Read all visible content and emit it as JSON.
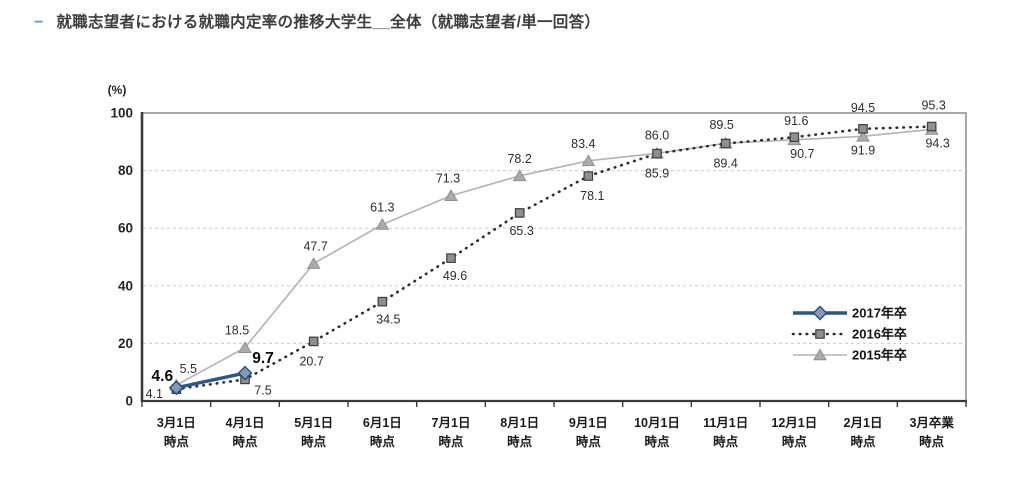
{
  "title": {
    "bullet": "−",
    "text": "就職志望者における就職内定率の推移大学生__全体（就職志望者/単一回答）"
  },
  "colors": {
    "bullet": "#4da6c9",
    "title_text": "#3d3d3d",
    "series_2017": "#2a5783",
    "series_2016": "#2e2e2e",
    "series_2015": "#b3b3b3",
    "grid": "#cacaca",
    "frame": "#848484",
    "axis": "#3a3a3a"
  },
  "chart_data": {
    "type": "line",
    "unit_label": "(%)",
    "ylim": [
      0,
      100
    ],
    "yticks": [
      0,
      20,
      40,
      60,
      80,
      100
    ],
    "grid": "horizontal dashed at 20/40/60/80, solid frame at 0 and 100",
    "legend_position": "inside-right",
    "categories": [
      [
        "3月1日",
        "時点"
      ],
      [
        "4月1日",
        "時点"
      ],
      [
        "5月1日",
        "時点"
      ],
      [
        "6月1日",
        "時点"
      ],
      [
        "7月1日",
        "時点"
      ],
      [
        "8月1日",
        "時点"
      ],
      [
        "9月1日",
        "時点"
      ],
      [
        "10月1日",
        "時点"
      ],
      [
        "11月1日",
        "時点"
      ],
      [
        "12月1日",
        "時点"
      ],
      [
        "2月1日",
        "時点"
      ],
      [
        "3月卒業",
        "時点"
      ]
    ],
    "series": [
      {
        "name": "2017年卒",
        "marker": "diamond",
        "line": "solid-thick",
        "color": "#2a5783",
        "emphasized": true,
        "values": [
          4.6,
          9.7
        ],
        "labels": [
          "4.6",
          "9.7"
        ]
      },
      {
        "name": "2016年卒",
        "marker": "square",
        "line": "dotted",
        "color": "#2e2e2e",
        "emphasized": false,
        "values": [
          4.1,
          7.5,
          20.7,
          34.5,
          49.6,
          65.3,
          78.1,
          85.9,
          89.4,
          91.6,
          94.5,
          95.3
        ],
        "labels": [
          "4.1",
          "7.5",
          "20.7",
          "34.5",
          "49.6",
          "65.3",
          "78.1",
          "85.9",
          "89.4",
          "91.6",
          "94.5",
          "95.3"
        ]
      },
      {
        "name": "2015年卒",
        "marker": "triangle",
        "line": "solid-thin",
        "color": "#b3b3b3",
        "emphasized": false,
        "values": [
          5.5,
          18.5,
          47.7,
          61.3,
          71.3,
          78.2,
          83.4,
          86.0,
          89.5,
          90.7,
          91.9,
          94.3
        ],
        "labels": [
          "5.5",
          "18.5",
          "47.7",
          "61.3",
          "71.3",
          "78.2",
          "83.4",
          "86.0",
          "89.5",
          "90.7",
          "91.9",
          "94.3"
        ]
      }
    ],
    "legend": [
      "2017年卒",
      "2016年卒",
      "2015年卒"
    ]
  }
}
